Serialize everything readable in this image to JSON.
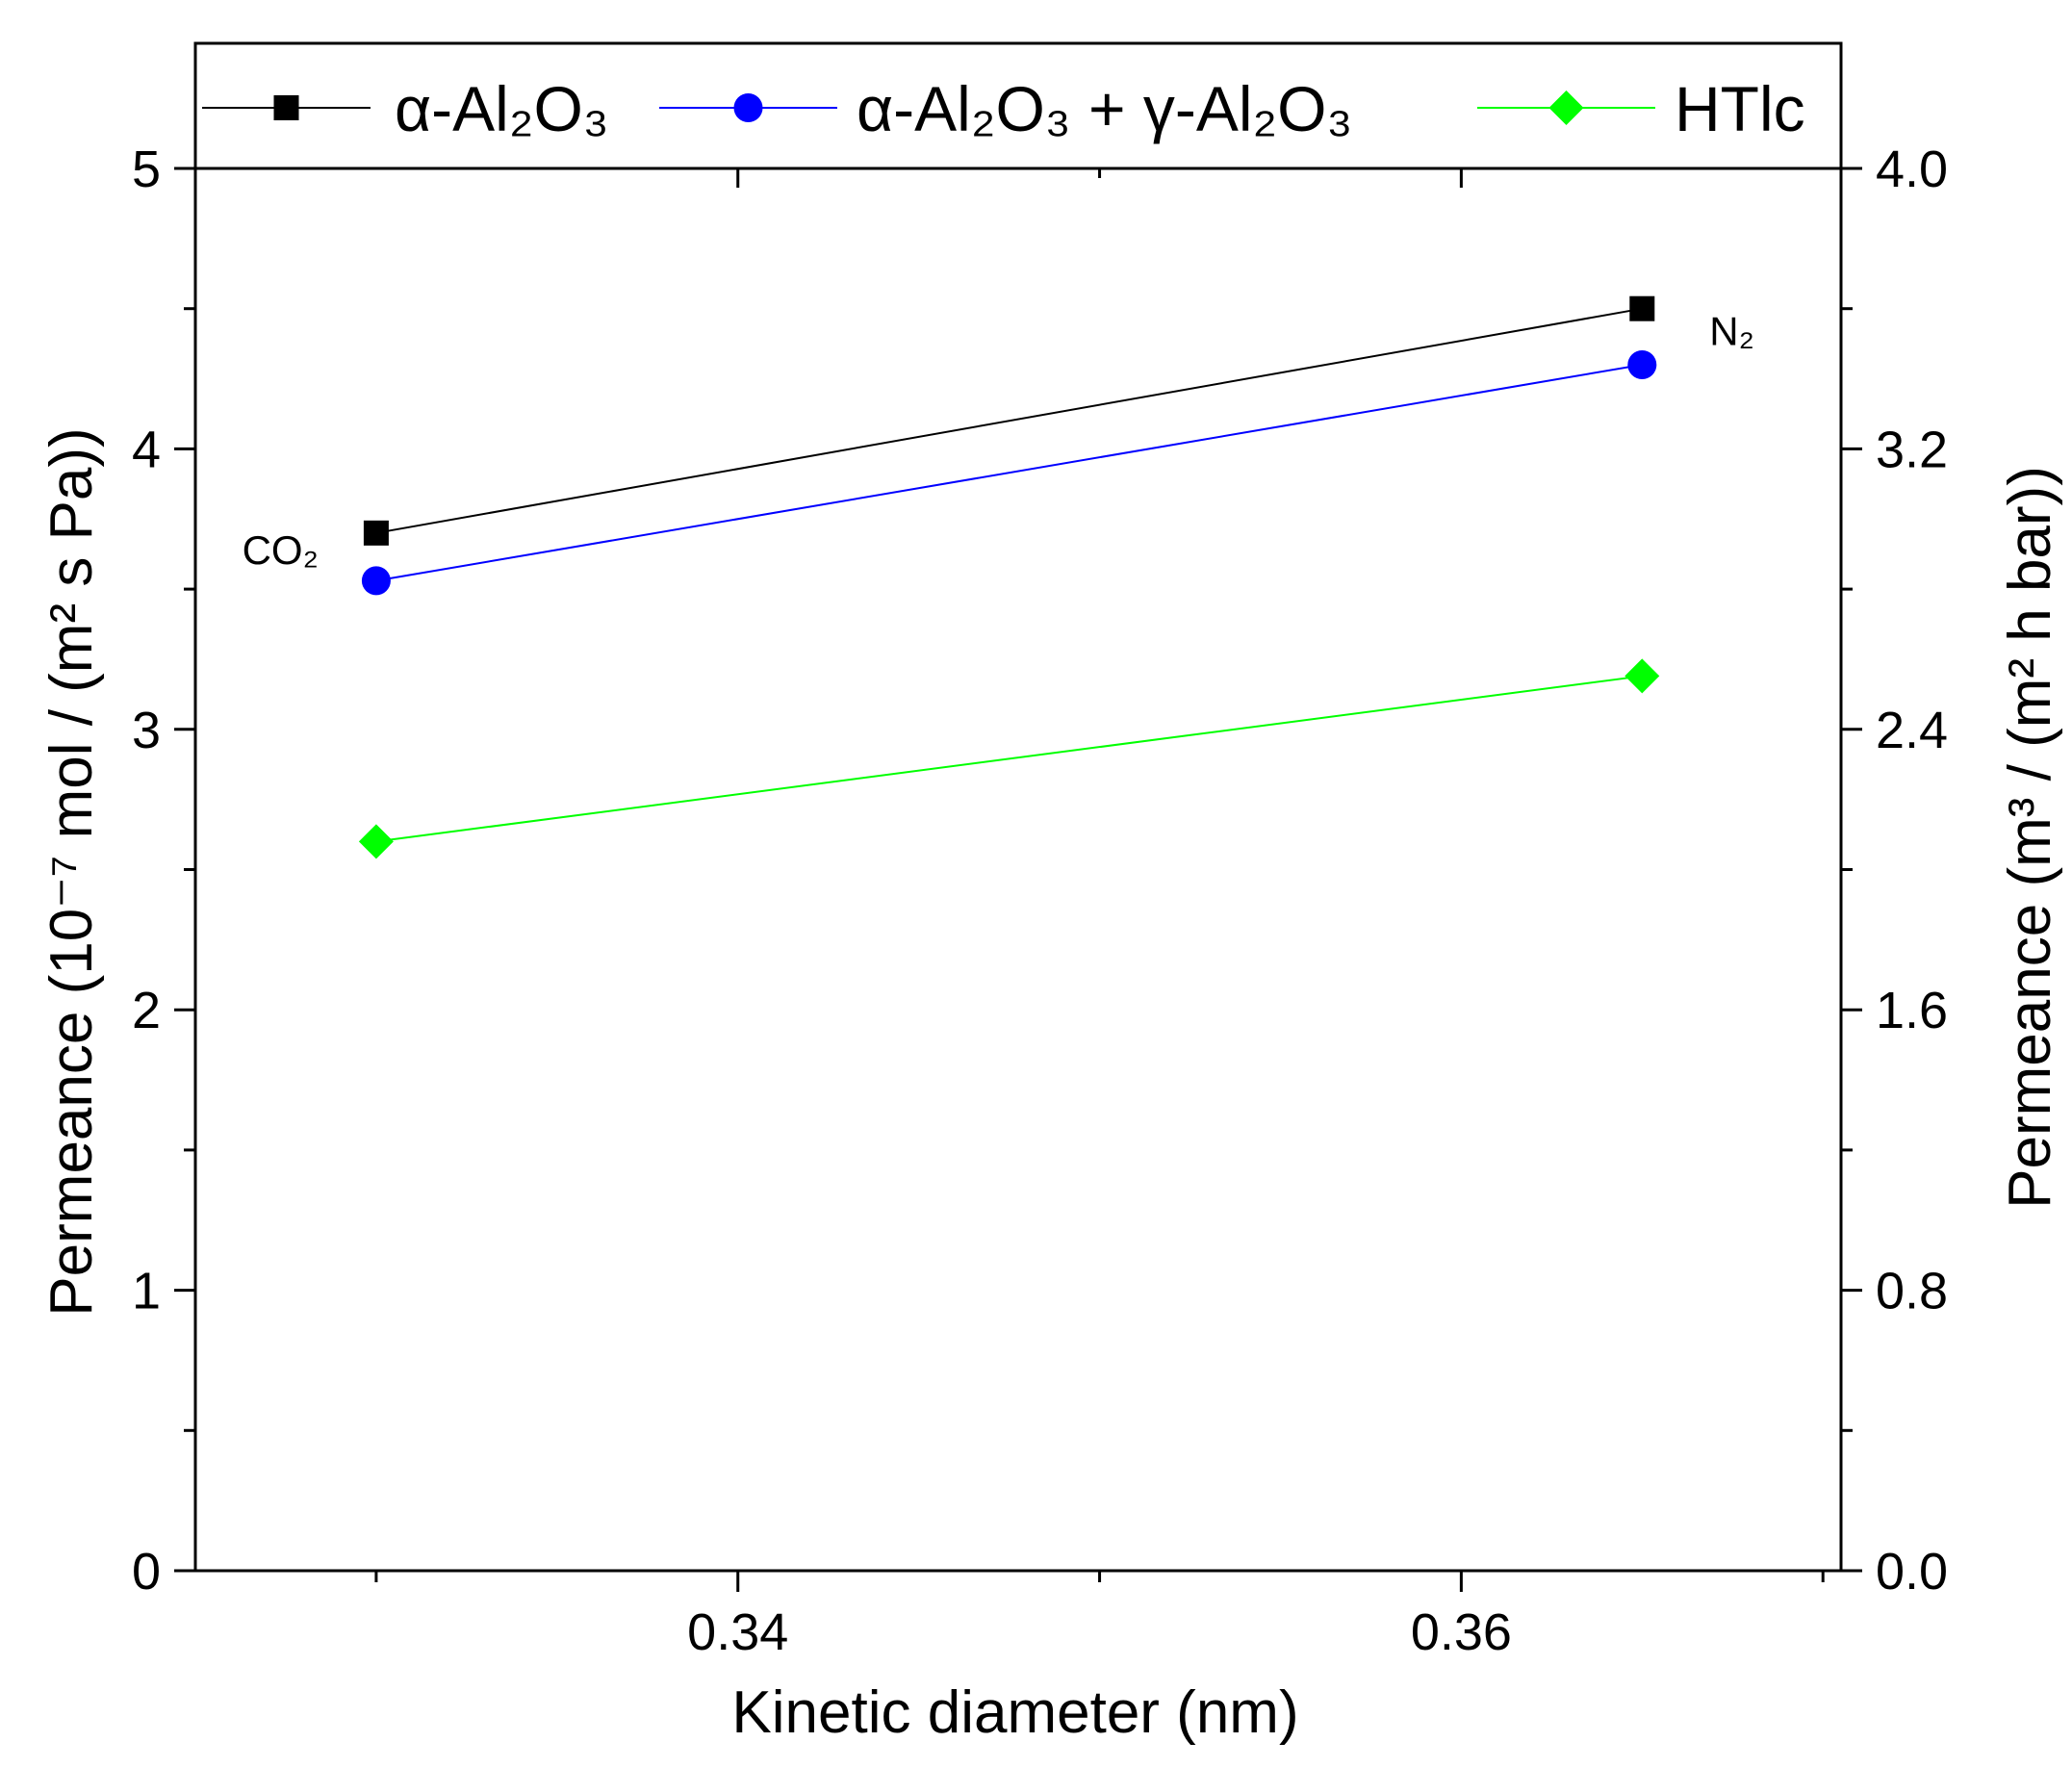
{
  "chart_data": {
    "type": "line",
    "xlabel": "Kinetic diameter (nm)",
    "ylabel": "Permeance (10⁻⁷ mol / (m² s Pa))",
    "y2label": "Permeance (m³ / (m² h bar))",
    "xlim": [
      0.325,
      0.3705
    ],
    "ylim": [
      0,
      5
    ],
    "y2lim": [
      0.0,
      4.0
    ],
    "xticks": [
      0.34,
      0.36
    ],
    "xtick_labels": [
      "0.34",
      "0.36"
    ],
    "yticks": [
      0,
      1,
      2,
      3,
      4,
      5
    ],
    "ytick_labels": [
      "0",
      "1",
      "2",
      "3",
      "4",
      "5"
    ],
    "y2ticks": [
      0.0,
      0.8,
      1.6,
      2.4,
      3.2,
      4.0
    ],
    "y2tick_labels": [
      "0.0",
      "0.8",
      "1.6",
      "2.4",
      "3.2",
      "4.0"
    ],
    "x": [
      0.33,
      0.365
    ],
    "series": [
      {
        "name": "α-Al₂O₃",
        "color": "#000000",
        "marker": "square",
        "values": [
          3.7,
          4.5
        ]
      },
      {
        "name": "α-Al₂O₃ + γ-Al₂O₃",
        "color": "#0000ff",
        "marker": "circle",
        "values": [
          3.53,
          4.3
        ]
      },
      {
        "name": "HTlc",
        "color": "#00ff00",
        "marker": "diamond",
        "values": [
          2.6,
          3.19
        ]
      }
    ],
    "annotations": [
      {
        "text": "CO₂",
        "x": 0.33,
        "y": 3.7
      },
      {
        "text": "N₂",
        "x": 0.365,
        "y": 4.5
      }
    ],
    "legend_position": "top"
  }
}
